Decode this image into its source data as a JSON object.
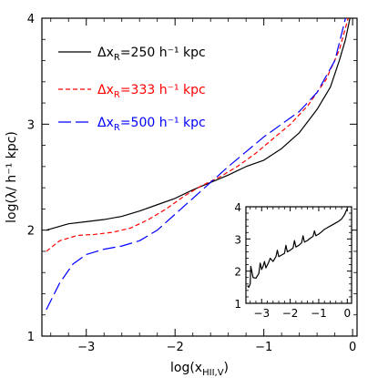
{
  "chart_data": [
    {
      "type": "line",
      "title": "",
      "xlabel": "log(x",
      "xlabel_sub": "HII,V",
      "xlabel_close": ")",
      "ylabel": "log(λ/ h⁻¹ kpc)",
      "xlim": [
        -3.5,
        0.05
      ],
      "ylim": [
        1,
        4
      ],
      "xticks": [
        -3,
        -2,
        -1,
        0
      ],
      "xtick_labels": [
        "−3",
        "−2",
        "−1",
        "0"
      ],
      "yticks": [
        1,
        2,
        3,
        4
      ],
      "ytick_labels": [
        "1",
        "2",
        "3",
        "4"
      ],
      "grid": false,
      "legend_position": "top-left",
      "series": [
        {
          "name": "250 h⁻¹ kpc",
          "legend_prefix": "Δx",
          "legend_sub": "R",
          "legend_eq": "=",
          "color": "#000000",
          "dash": "solid",
          "x": [
            -3.45,
            -3.2,
            -3.0,
            -2.8,
            -2.6,
            -2.4,
            -2.2,
            -2.0,
            -1.8,
            -1.6,
            -1.4,
            -1.2,
            -1.0,
            -0.8,
            -0.6,
            -0.4,
            -0.25,
            -0.15,
            -0.08,
            -0.03
          ],
          "y": [
            2.0,
            2.06,
            2.08,
            2.1,
            2.13,
            2.18,
            2.24,
            2.3,
            2.38,
            2.45,
            2.52,
            2.6,
            2.66,
            2.77,
            2.92,
            3.14,
            3.35,
            3.6,
            3.8,
            4.0
          ]
        },
        {
          "name": "333 h⁻¹ kpc",
          "legend_prefix": "Δx",
          "legend_sub": "R",
          "legend_eq": "=",
          "color": "#ff0000",
          "dash": "short-dash",
          "x": [
            -3.45,
            -3.3,
            -3.1,
            -2.9,
            -2.7,
            -2.5,
            -2.3,
            -2.1,
            -1.9,
            -1.7,
            -1.5,
            -1.3,
            -1.1,
            -0.9,
            -0.7,
            -0.5,
            -0.3,
            -0.15,
            -0.05
          ],
          "y": [
            1.8,
            1.9,
            1.95,
            1.96,
            1.98,
            2.02,
            2.1,
            2.2,
            2.32,
            2.42,
            2.5,
            2.6,
            2.72,
            2.86,
            3.0,
            3.18,
            3.42,
            3.7,
            4.0
          ]
        },
        {
          "name": "500 h⁻¹ kpc",
          "legend_prefix": "Δx",
          "legend_sub": "R",
          "legend_eq": "=",
          "color": "#0000ff",
          "dash": "long-dash",
          "x": [
            -3.45,
            -3.3,
            -3.15,
            -3.0,
            -2.8,
            -2.6,
            -2.4,
            -2.2,
            -2.0,
            -1.8,
            -1.6,
            -1.4,
            -1.2,
            -1.0,
            -0.8,
            -0.6,
            -0.4,
            -0.2,
            -0.08
          ],
          "y": [
            1.25,
            1.5,
            1.68,
            1.77,
            1.82,
            1.85,
            1.9,
            2.0,
            2.15,
            2.3,
            2.45,
            2.6,
            2.74,
            2.88,
            3.0,
            3.12,
            3.3,
            3.6,
            4.0
          ]
        }
      ]
    },
    {
      "type": "line",
      "title": "",
      "xlim": [
        -3.55,
        0.15
      ],
      "ylim": [
        1,
        4
      ],
      "xticks": [
        -3,
        -2,
        -1,
        0
      ],
      "xtick_labels": [
        "−3",
        "−2",
        "−1",
        "0"
      ],
      "yticks": [
        1,
        2,
        3,
        4
      ],
      "ytick_labels": [
        "1",
        "2",
        "3",
        "4"
      ],
      "grid": false,
      "legend_position": "none",
      "series": [
        {
          "color": "#000000",
          "dash": "solid",
          "x": [
            -3.5,
            -3.45,
            -3.4,
            -3.38,
            -3.3,
            -3.2,
            -3.1,
            -3.05,
            -3.0,
            -2.95,
            -2.9,
            -2.85,
            -2.75,
            -2.7,
            -2.6,
            -2.5,
            -2.45,
            -2.4,
            -2.3,
            -2.2,
            -2.15,
            -2.1,
            -2.0,
            -1.9,
            -1.85,
            -1.8,
            -1.7,
            -1.6,
            -1.55,
            -1.5,
            -1.4,
            -1.3,
            -1.2,
            -1.15,
            -1.1,
            -1.0,
            -0.9,
            -0.8,
            -0.7,
            -0.6,
            -0.5,
            -0.4,
            -0.3,
            -0.2,
            -0.1,
            0.0
          ],
          "y": [
            1.55,
            1.5,
            1.6,
            2.15,
            1.8,
            1.78,
            1.92,
            2.25,
            2.05,
            2.15,
            2.3,
            2.1,
            2.28,
            2.4,
            2.3,
            2.45,
            2.65,
            2.45,
            2.5,
            2.55,
            2.8,
            2.6,
            2.65,
            2.72,
            2.95,
            2.75,
            2.8,
            2.88,
            3.1,
            2.9,
            2.95,
            3.02,
            3.08,
            3.25,
            3.1,
            3.15,
            3.22,
            3.3,
            3.35,
            3.4,
            3.45,
            3.5,
            3.55,
            3.62,
            3.75,
            3.95
          ]
        }
      ]
    }
  ]
}
